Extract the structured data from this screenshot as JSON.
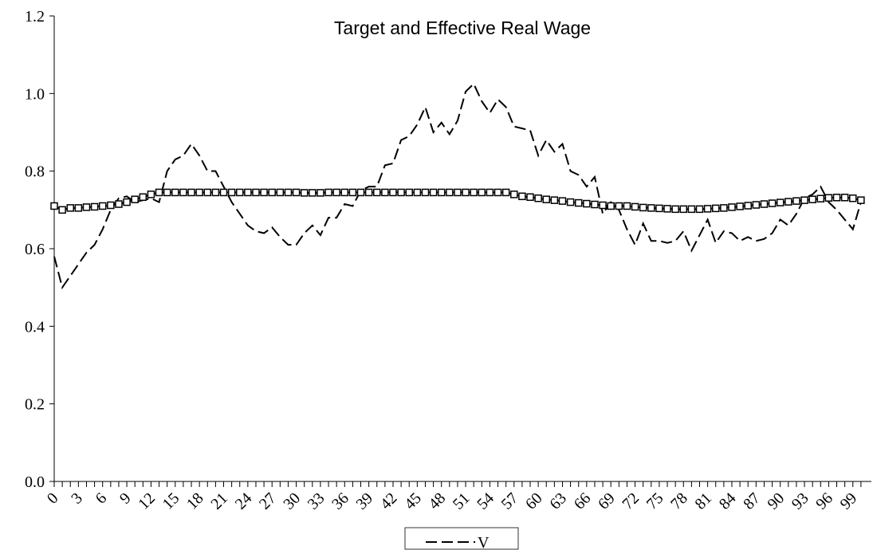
{
  "chart_data": {
    "type": "line",
    "title": "Target and Effective Real Wage",
    "x": [
      0,
      1,
      2,
      3,
      4,
      5,
      6,
      7,
      8,
      9,
      10,
      11,
      12,
      13,
      14,
      15,
      16,
      17,
      18,
      19,
      20,
      21,
      22,
      23,
      24,
      25,
      26,
      27,
      28,
      29,
      30,
      31,
      32,
      33,
      34,
      35,
      36,
      37,
      38,
      39,
      40,
      41,
      42,
      43,
      44,
      45,
      46,
      47,
      48,
      49,
      50,
      51,
      52,
      53,
      54,
      55,
      56,
      57,
      58,
      59,
      60,
      61,
      62,
      63,
      64,
      65,
      66,
      67,
      68,
      69,
      70,
      71,
      72,
      73,
      74,
      75,
      76,
      77,
      78,
      79,
      80,
      81,
      82,
      83,
      84,
      85,
      86,
      87,
      88,
      89,
      90,
      91,
      92,
      93,
      94,
      95,
      96,
      97,
      98,
      99,
      100
    ],
    "series": [
      {
        "name": "V",
        "color": "#000000",
        "dash": true,
        "marker": "none",
        "values": [
          0.58,
          0.5,
          0.53,
          0.56,
          0.59,
          0.61,
          0.65,
          0.7,
          0.73,
          0.735,
          0.72,
          0.725,
          0.73,
          0.72,
          0.8,
          0.83,
          0.84,
          0.87,
          0.84,
          0.8,
          0.8,
          0.76,
          0.72,
          0.69,
          0.66,
          0.645,
          0.64,
          0.655,
          0.63,
          0.61,
          0.61,
          0.64,
          0.66,
          0.635,
          0.68,
          0.68,
          0.715,
          0.71,
          0.75,
          0.76,
          0.76,
          0.815,
          0.82,
          0.88,
          0.89,
          0.92,
          0.965,
          0.9,
          0.925,
          0.895,
          0.93,
          1.005,
          1.025,
          0.98,
          0.95,
          0.985,
          0.965,
          0.915,
          0.91,
          0.905,
          0.84,
          0.88,
          0.85,
          0.87,
          0.8,
          0.79,
          0.76,
          0.785,
          0.69,
          0.72,
          0.7,
          0.65,
          0.61,
          0.665,
          0.62,
          0.62,
          0.615,
          0.62,
          0.645,
          0.595,
          0.635,
          0.675,
          0.615,
          0.645,
          0.64,
          0.62,
          0.63,
          0.62,
          0.625,
          0.64,
          0.675,
          0.66,
          0.69,
          0.73,
          0.74,
          0.76,
          0.72,
          0.7,
          0.675,
          0.65,
          0.72
        ]
      },
      {
        "color": "#000000",
        "dash": false,
        "marker": "square",
        "values": [
          0.71,
          0.7,
          0.705,
          0.705,
          0.707,
          0.708,
          0.71,
          0.712,
          0.715,
          0.72,
          0.727,
          0.733,
          0.74,
          0.745,
          0.745,
          0.745,
          0.745,
          0.745,
          0.745,
          0.745,
          0.745,
          0.745,
          0.745,
          0.745,
          0.745,
          0.745,
          0.745,
          0.745,
          0.745,
          0.745,
          0.745,
          0.744,
          0.744,
          0.744,
          0.745,
          0.745,
          0.745,
          0.745,
          0.745,
          0.745,
          0.745,
          0.745,
          0.745,
          0.745,
          0.745,
          0.745,
          0.745,
          0.745,
          0.745,
          0.745,
          0.745,
          0.745,
          0.745,
          0.745,
          0.745,
          0.745,
          0.745,
          0.74,
          0.735,
          0.733,
          0.73,
          0.727,
          0.725,
          0.723,
          0.72,
          0.718,
          0.716,
          0.714,
          0.712,
          0.71,
          0.71,
          0.71,
          0.708,
          0.706,
          0.705,
          0.704,
          0.703,
          0.702,
          0.702,
          0.702,
          0.702,
          0.703,
          0.704,
          0.705,
          0.707,
          0.709,
          0.711,
          0.713,
          0.715,
          0.717,
          0.719,
          0.721,
          0.723,
          0.725,
          0.727,
          0.729,
          0.731,
          0.732,
          0.732,
          0.73,
          0.725
        ]
      }
    ],
    "xlim": [
      0,
      101
    ],
    "xticks": [
      0,
      3,
      6,
      9,
      12,
      15,
      18,
      21,
      24,
      27,
      30,
      33,
      36,
      39,
      42,
      45,
      48,
      51,
      54,
      57,
      60,
      63,
      66,
      69,
      72,
      75,
      78,
      81,
      84,
      87,
      90,
      93,
      96,
      99
    ],
    "ylim": [
      0,
      1.2
    ],
    "yticks": [
      {
        "value": 0,
        "label": "0.0"
      },
      0.2,
      0.4,
      0.6,
      0.8,
      {
        "value": 1,
        "label": "1.0"
      },
      1.2
    ],
    "grid": false,
    "legend": "bottom"
  }
}
